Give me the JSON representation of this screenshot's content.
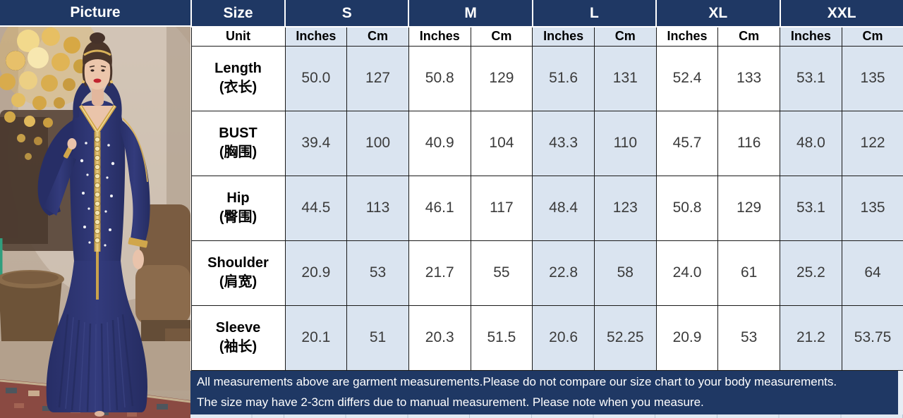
{
  "table": {
    "picture_header": "Picture",
    "size_header": "Size",
    "unit_label": "Unit",
    "sizes": [
      "S",
      "M",
      "L",
      "XL",
      "XXL"
    ],
    "unit_columns": [
      "Inches",
      "Cm"
    ],
    "rows": [
      {
        "label_en": "Length",
        "label_zh": "(衣长)",
        "values": [
          "50.0",
          "127",
          "50.8",
          "129",
          "51.6",
          "131",
          "52.4",
          "133",
          "53.1",
          "135"
        ]
      },
      {
        "label_en": "BUST",
        "label_zh": "(胸围)",
        "values": [
          "39.4",
          "100",
          "40.9",
          "104",
          "43.3",
          "110",
          "45.7",
          "116",
          "48.0",
          "122"
        ]
      },
      {
        "label_en": "Hip",
        "label_zh": "(臀围)",
        "values": [
          "44.5",
          "113",
          "46.1",
          "117",
          "48.4",
          "123",
          "50.8",
          "129",
          "53.1",
          "135"
        ]
      },
      {
        "label_en": "Shoulder",
        "label_zh": "(肩宽)",
        "values": [
          "20.9",
          "53",
          "21.7",
          "55",
          "22.8",
          "58",
          "24.0",
          "61",
          "25.2",
          "64"
        ]
      },
      {
        "label_en": "Sleeve",
        "label_zh": "(袖长)",
        "values": [
          "20.1",
          "51",
          "20.3",
          "51.5",
          "20.6",
          "52.25",
          "20.9",
          "53",
          "21.2",
          "53.75"
        ]
      }
    ],
    "footer_lines": [
      "All measurements above are garment measurements.Please do not compare our size chart to your body measurements.",
      "The size may have 2-3cm differs due to manual measurement. Please note when you measure."
    ]
  },
  "colors": {
    "navy": "#1F3864",
    "light_blue": "#DAE4F0",
    "border_dark": "#1A1A1A",
    "value_text": "#3B3B3B",
    "gold": "#D0A64B",
    "dress_navy": "#2C336F"
  }
}
